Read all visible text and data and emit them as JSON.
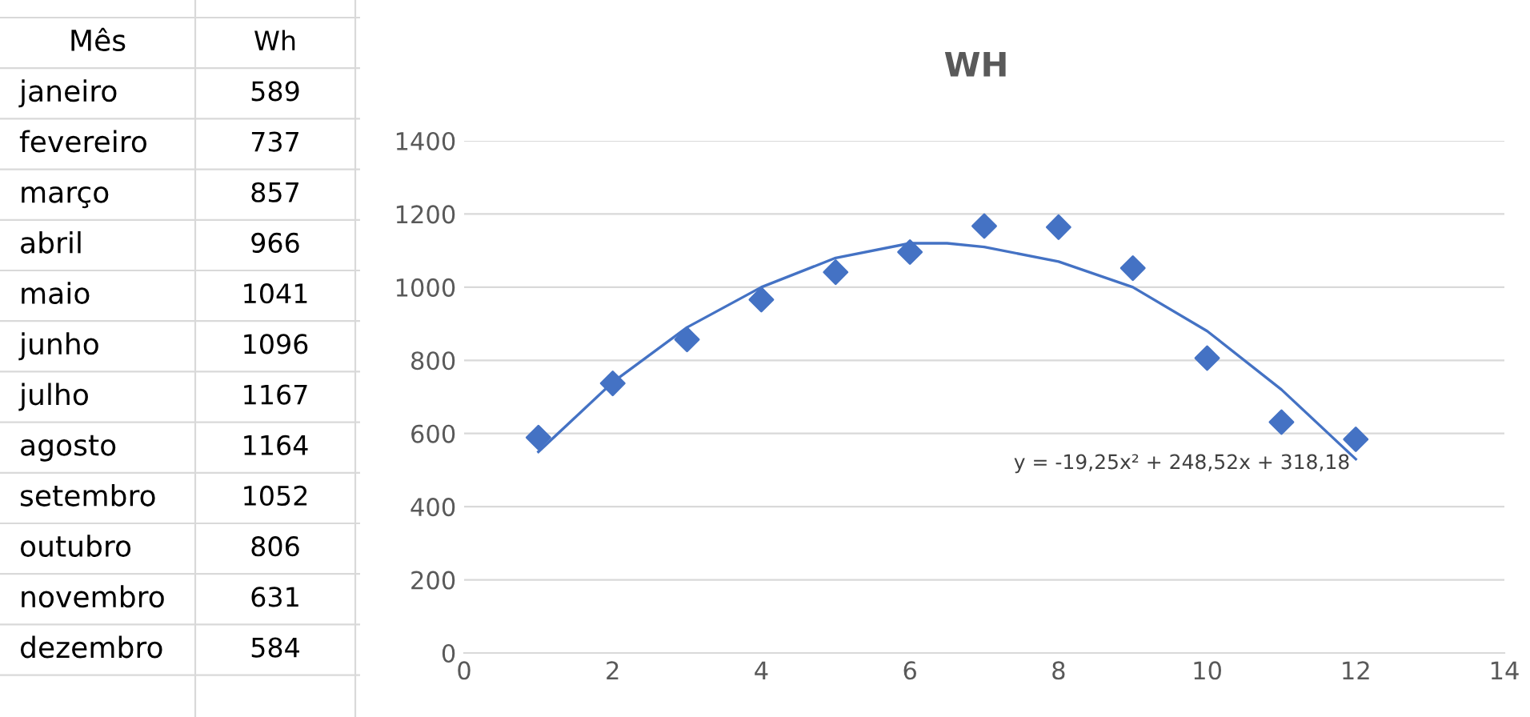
{
  "chart_data": [
    {
      "type": "other",
      "annotations": [
        "Mês",
        "Wh"
      ],
      "categories": [
        "janeiro",
        "fevereiro",
        "março",
        "abril",
        "maio",
        "junho",
        "julho",
        "agosto",
        "setembro",
        "outubro",
        "novembro",
        "dezembro"
      ],
      "values": [
        589,
        737,
        857,
        966,
        1041,
        1096,
        1167,
        1164,
        1052,
        806,
        631,
        584
      ],
      "data_labels": true
    },
    {
      "type": "scatter",
      "title": "WH",
      "x": [
        1,
        2,
        3,
        4,
        5,
        6,
        7,
        8,
        9,
        10,
        11,
        12
      ],
      "series": [
        {
          "type": "scatter",
          "color": "#4472c4",
          "marker": "diamond",
          "values": [
            589,
            737,
            857,
            966,
            1041,
            1096,
            1167,
            1164,
            1052,
            806,
            631,
            584
          ]
        },
        {
          "type": "line",
          "color": "#4472c4",
          "line_style": "solid",
          "x": [
            1,
            2,
            3,
            4,
            5,
            6,
            6.5,
            7,
            8,
            9,
            10,
            11,
            12
          ],
          "values": [
            550,
            740,
            890,
            1000,
            1080,
            1120,
            1120,
            1110,
            1070,
            1000,
            880,
            720,
            530
          ]
        }
      ],
      "annotations": [
        "y = -19,25x² + 248,52x + 318,18"
      ],
      "xlim": [
        0,
        14
      ],
      "xticks": [
        0,
        2,
        4,
        6,
        8,
        10,
        12,
        14
      ],
      "ylim": [
        0,
        1400
      ],
      "yticks": [
        0,
        200,
        400,
        600,
        800,
        1000,
        1200,
        1400
      ],
      "grid": "y",
      "legend": false
    }
  ]
}
